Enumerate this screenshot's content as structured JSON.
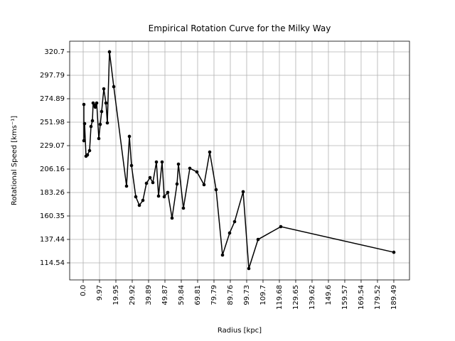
{
  "chart_data": {
    "type": "line",
    "title": "Empirical Rotation Curve for the Milky Way",
    "xlabel": "Radius [kpc]",
    "ylabel": "Rotational Speed [kms⁻¹]",
    "x": [
      0.43,
      0.43,
      0.87,
      1.73,
      2.6,
      3.9,
      4.77,
      5.64,
      6.07,
      6.94,
      7.37,
      8.24,
      9.54,
      10.41,
      11.27,
      12.58,
      13.88,
      14.74,
      16.04,
      18.65,
      26.45,
      28.19,
      29.49,
      32.09,
      34.26,
      36.43,
      38.59,
      40.76,
      42.5,
      44.67,
      45.97,
      48.13,
      49.44,
      51.6,
      54.21,
      57.24,
      58.11,
      61.14,
      65.05,
      69.38,
      73.72,
      77.19,
      81.09,
      84.99,
      89.33,
      92.37,
      97.57,
      101.04,
      106.68,
      120.55,
      189.5
    ],
    "series": [
      {
        "color": "#000000",
        "values": [
          269.3,
          233.9,
          250.6,
          218.7,
          220.0,
          224.2,
          247.8,
          253.4,
          270.7,
          268.6,
          266.6,
          270.7,
          236.0,
          249.9,
          262.4,
          284.6,
          270.7,
          251.3,
          320.7,
          286.7,
          189.5,
          238.1,
          209.6,
          179.1,
          170.8,
          175.6,
          192.3,
          197.8,
          193.0,
          213.1,
          179.8,
          213.1,
          179.1,
          183.3,
          158.3,
          191.6,
          211.0,
          168.0,
          206.9,
          203.4,
          190.9,
          222.8,
          186.0,
          122.2,
          143.7,
          154.8,
          184.0,
          109.0,
          137.4,
          149.9,
          124.9
        ]
      }
    ],
    "xlim": [
      -8.24,
      199.05
    ],
    "ylim": [
      97.88,
      331.1
    ],
    "xticks": [
      {
        "value": 0,
        "label": "0.0"
      },
      9.97,
      19.95,
      29.92,
      39.89,
      49.87,
      59.84,
      69.81,
      79.79,
      89.76,
      99.73,
      109.7,
      119.68,
      129.65,
      139.62,
      149.6,
      159.57,
      169.54,
      179.52,
      189.49
    ],
    "yticks": [
      114.54,
      137.44,
      160.35,
      183.26,
      206.16,
      229.07,
      251.98,
      274.89,
      297.79,
      320.7
    ],
    "grid": true
  }
}
